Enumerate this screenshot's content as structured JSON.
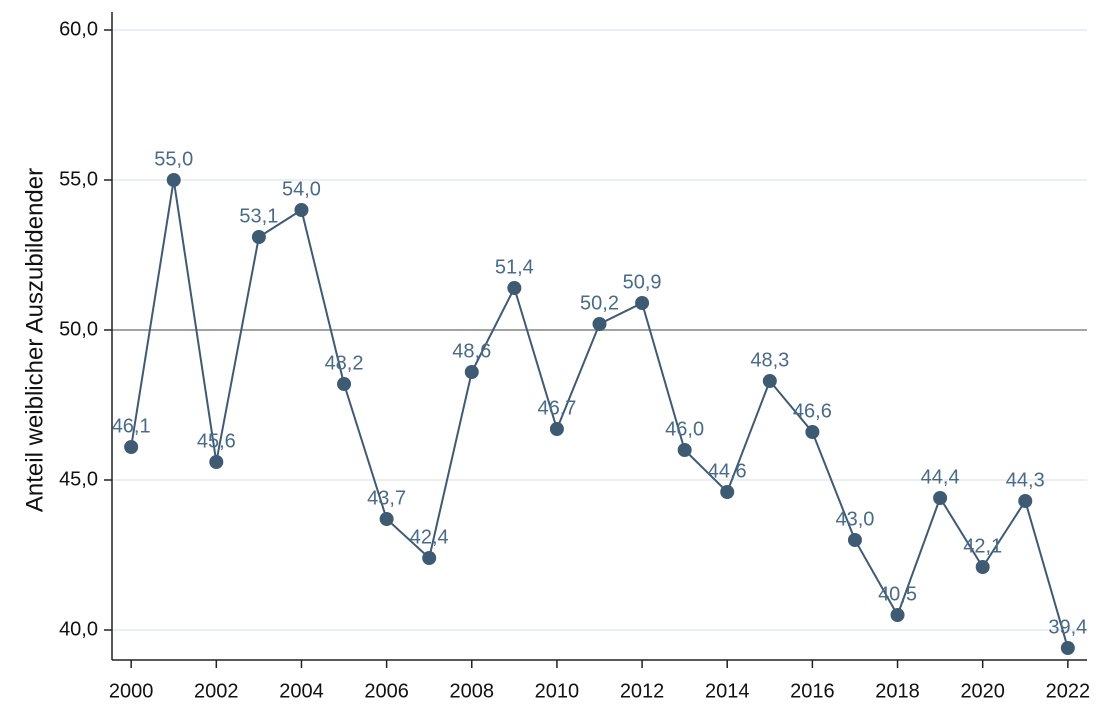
{
  "chart_data": {
    "type": "line",
    "y_label": "Anteil weiblicher Auszubildender",
    "x": [
      2000,
      2001,
      2002,
      2003,
      2004,
      2005,
      2006,
      2007,
      2008,
      2009,
      2010,
      2011,
      2012,
      2013,
      2014,
      2015,
      2016,
      2017,
      2018,
      2019,
      2020,
      2021,
      2022
    ],
    "series": [
      {
        "color": "#3f5a73",
        "values": [
          46.1,
          55.0,
          45.6,
          53.1,
          54.0,
          48.2,
          43.7,
          42.4,
          48.6,
          51.4,
          46.7,
          50.2,
          50.9,
          46.0,
          44.6,
          48.3,
          46.6,
          43.0,
          40.5,
          44.4,
          42.1,
          44.3,
          39.4
        ],
        "value_labels": [
          "46,1",
          "55,0",
          "45,6",
          "53,1",
          "54,0",
          "48,2",
          "43,7",
          "42,4",
          "48,6",
          "51,4",
          "46,7",
          "50,2",
          "50,9",
          "46,0",
          "44,6",
          "48,3",
          "46,6",
          "43,0",
          "40,5",
          "44,4",
          "42,1",
          "44,3",
          "39,4"
        ]
      }
    ],
    "xlim": [
      1999.55,
      2022.45
    ],
    "xticks": [
      2000,
      2002,
      2004,
      2006,
      2008,
      2010,
      2012,
      2014,
      2016,
      2018,
      2020,
      2022
    ],
    "ylim": [
      39,
      60.6
    ],
    "yticks": [
      {
        "value": 40,
        "label": "40,0"
      },
      {
        "value": 45,
        "label": "45,0"
      },
      {
        "value": 50,
        "label": "50,0"
      },
      {
        "value": 55,
        "label": "55,0"
      },
      {
        "value": 60,
        "label": "60,0"
      }
    ],
    "grid": true,
    "reference_line": 50
  }
}
